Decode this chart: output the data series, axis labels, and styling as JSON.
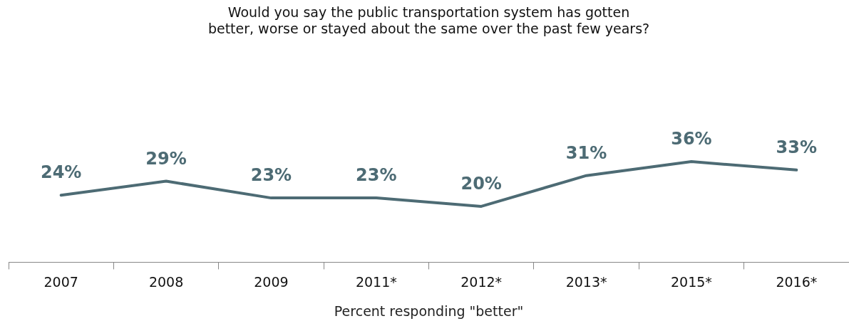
{
  "chart_data": {
    "type": "line",
    "title": "Would you say the public transportation system has gotten\nbetter, worse or stayed about the same over the past few years?",
    "xlabel": "Percent responding \"better\"",
    "categories": [
      "2007",
      "2008",
      "2009",
      "2011*",
      "2012*",
      "2013*",
      "2015*",
      "2016*"
    ],
    "series": [
      {
        "color": "#4d6b74",
        "values": [
          24,
          29,
          23,
          23,
          20,
          31,
          36,
          33
        ],
        "value_labels": [
          "24%",
          "29%",
          "23%",
          "23%",
          "20%",
          "31%",
          "36%",
          "33%"
        ]
      }
    ],
    "tick_labels": "x",
    "legend": false,
    "grid": false,
    "marker": "none",
    "line_style": "solid"
  }
}
